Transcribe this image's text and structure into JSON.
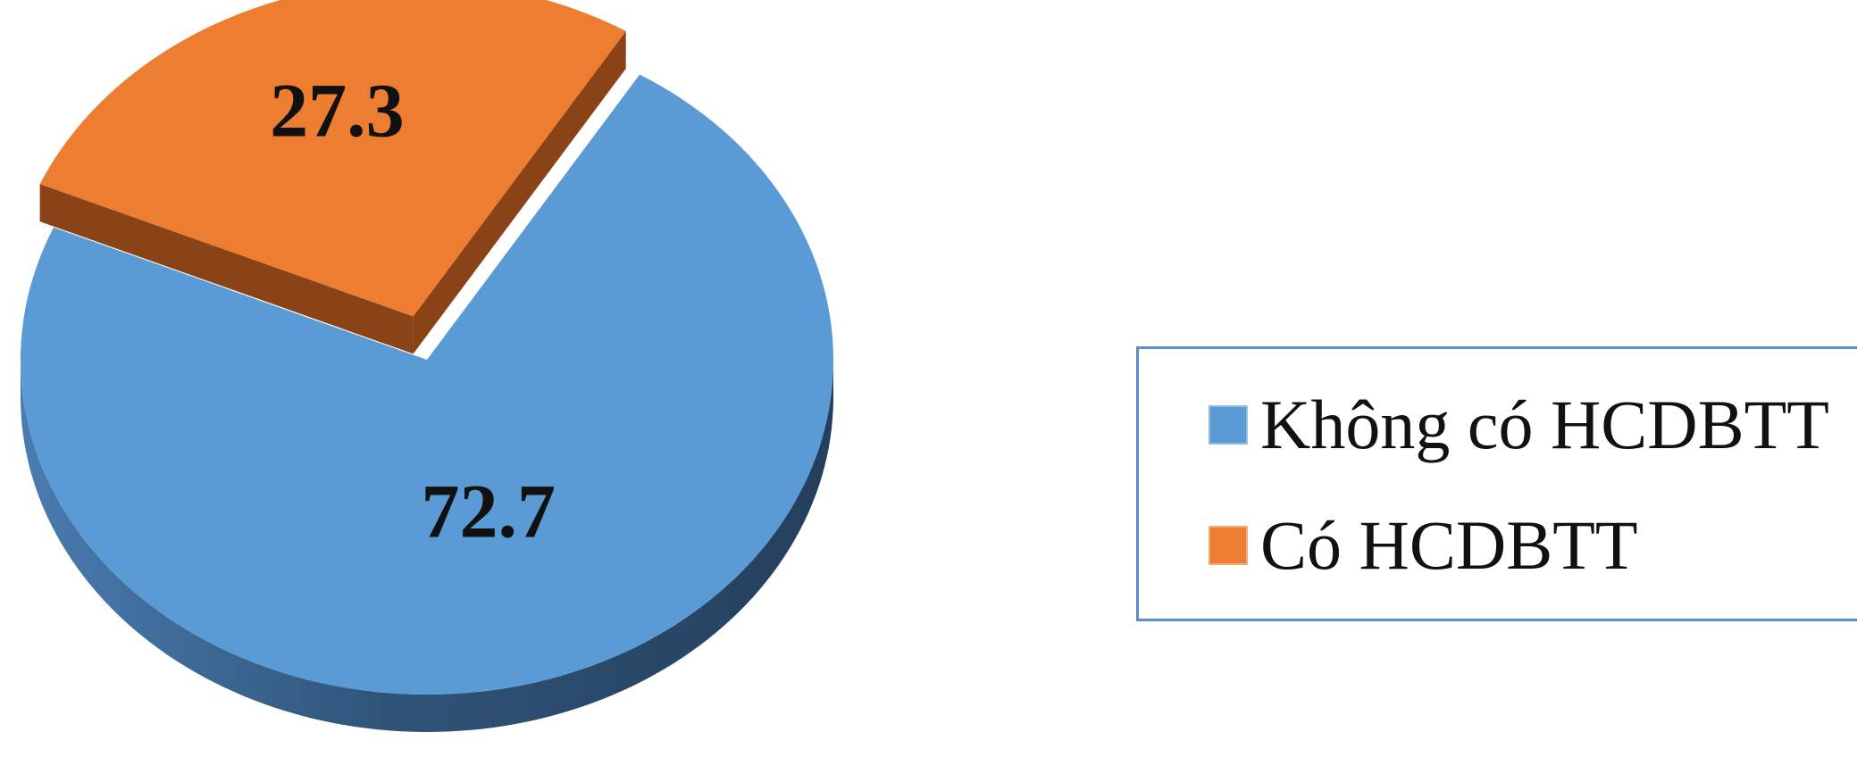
{
  "chart_data": {
    "type": "pie",
    "style": "3d-exploded",
    "categories": [
      "Không có HCDBTT",
      "Có HCDBTT"
    ],
    "values": [
      72.7,
      27.3
    ],
    "data_labels": [
      "72.7",
      "27.3"
    ],
    "colors": [
      "#5b9bd5",
      "#ed7d31"
    ],
    "side_colors": [
      "#2f5276",
      "#8a4316"
    ],
    "exploded": [
      false,
      true
    ],
    "legend_position": "right",
    "title": ""
  }
}
